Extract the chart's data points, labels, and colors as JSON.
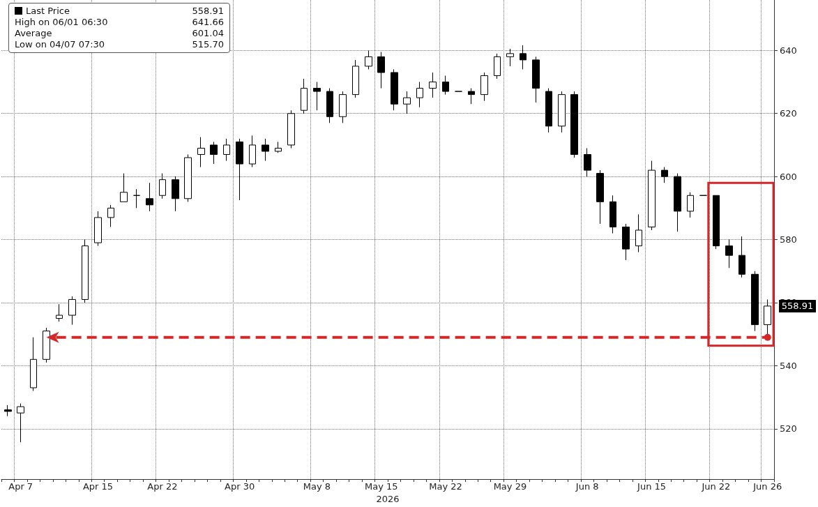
{
  "chart_data": {
    "type": "candlestick",
    "xlabel": "2026",
    "categories": [
      null,
      "Apr 7",
      null,
      null,
      null,
      null,
      null,
      "Apr 15",
      null,
      null,
      null,
      null,
      "Apr 22",
      null,
      null,
      null,
      null,
      null,
      "Apr 30",
      null,
      null,
      null,
      null,
      null,
      "May 8",
      null,
      null,
      null,
      null,
      "May 15",
      null,
      null,
      null,
      null,
      "May 22",
      null,
      null,
      null,
      null,
      "May 29",
      null,
      null,
      null,
      null,
      null,
      "Jun 8",
      null,
      null,
      null,
      null,
      "Jun 15",
      null,
      null,
      null,
      null,
      "Jun 22",
      null,
      null,
      null,
      "Jun 26"
    ],
    "series": [
      {
        "name": "Last Price",
        "color": "#000000",
        "ohlc": [
          [
            526,
            527.5,
            524,
            525.5
          ],
          [
            525,
            528,
            515.7,
            527
          ],
          [
            533,
            549,
            532,
            542
          ],
          [
            542,
            552,
            541,
            551
          ],
          [
            555,
            559.5,
            554,
            556
          ],
          [
            556,
            562,
            553,
            561
          ],
          [
            561,
            580,
            560,
            578
          ],
          [
            579,
            589,
            578,
            587
          ],
          [
            587,
            591,
            584,
            590
          ],
          [
            592,
            601,
            592,
            595
          ],
          [
            594,
            596,
            590,
            594
          ],
          [
            593,
            598,
            589,
            591
          ],
          [
            594,
            601,
            593,
            599
          ],
          [
            599,
            600,
            589,
            593
          ],
          [
            593,
            607,
            592,
            606
          ],
          [
            607,
            612.5,
            603,
            609
          ],
          [
            610,
            611,
            604,
            607
          ],
          [
            607,
            612,
            605,
            610
          ],
          [
            611,
            612,
            592.5,
            604
          ],
          [
            604,
            613,
            603,
            610
          ],
          [
            610,
            612,
            605,
            608
          ],
          [
            608,
            611,
            607.5,
            609
          ],
          [
            610,
            621,
            609,
            620
          ],
          [
            621,
            631,
            620,
            628
          ],
          [
            628,
            630,
            621,
            627
          ],
          [
            627,
            628,
            617,
            619
          ],
          [
            619,
            627,
            617,
            626
          ],
          [
            626,
            637,
            625,
            635
          ],
          [
            635,
            640,
            634,
            638
          ],
          [
            638,
            639.5,
            628,
            633
          ],
          [
            633,
            634,
            621,
            623
          ],
          [
            623,
            627,
            620,
            625
          ],
          [
            625,
            630,
            622,
            628
          ],
          [
            628,
            633,
            625,
            630
          ],
          [
            630,
            632,
            626,
            627
          ],
          [
            627,
            627,
            627,
            627
          ],
          [
            627,
            628,
            623,
            626
          ],
          [
            626,
            633,
            624,
            632
          ],
          [
            632,
            639,
            631,
            638
          ],
          [
            638,
            640.5,
            635,
            639
          ],
          [
            639,
            641.66,
            634,
            637
          ],
          [
            637,
            638,
            623.5,
            628
          ],
          [
            627,
            628,
            614,
            616
          ],
          [
            616,
            627,
            614,
            626
          ],
          [
            626,
            627,
            606,
            607
          ],
          [
            607,
            609,
            600,
            602
          ],
          [
            601,
            602,
            585,
            592
          ],
          [
            592,
            594,
            582,
            584
          ],
          [
            584,
            585,
            573.5,
            577
          ],
          [
            578,
            588,
            576,
            583
          ],
          [
            584,
            605,
            583,
            602
          ],
          [
            602,
            603,
            598,
            600
          ],
          [
            600,
            601,
            582.5,
            589
          ],
          [
            589,
            595,
            587,
            594
          ],
          [
            594,
            594,
            594,
            594
          ],
          [
            594,
            594,
            577,
            578
          ],
          [
            578,
            580,
            571,
            575
          ],
          [
            575,
            581,
            568,
            569
          ],
          [
            569,
            570,
            551,
            553
          ],
          [
            553,
            561,
            550,
            558.91
          ]
        ]
      }
    ],
    "ylim": [
      504,
      656
    ],
    "yticks": [
      520,
      540,
      560,
      580,
      600,
      620,
      640
    ],
    "grid": true,
    "legend": "top left",
    "ref_lines": [
      {
        "axis": "y",
        "value": 549,
        "color": "#d62728",
        "line_style": "dashed"
      }
    ],
    "annotations": [
      {
        "text": "558.91",
        "x": "Jun 26",
        "y": 558.91
      },
      "High on 06/01 06:30 641.66",
      "Average 601.04",
      "Low on 04/07 07:30 515.70"
    ]
  }
}
